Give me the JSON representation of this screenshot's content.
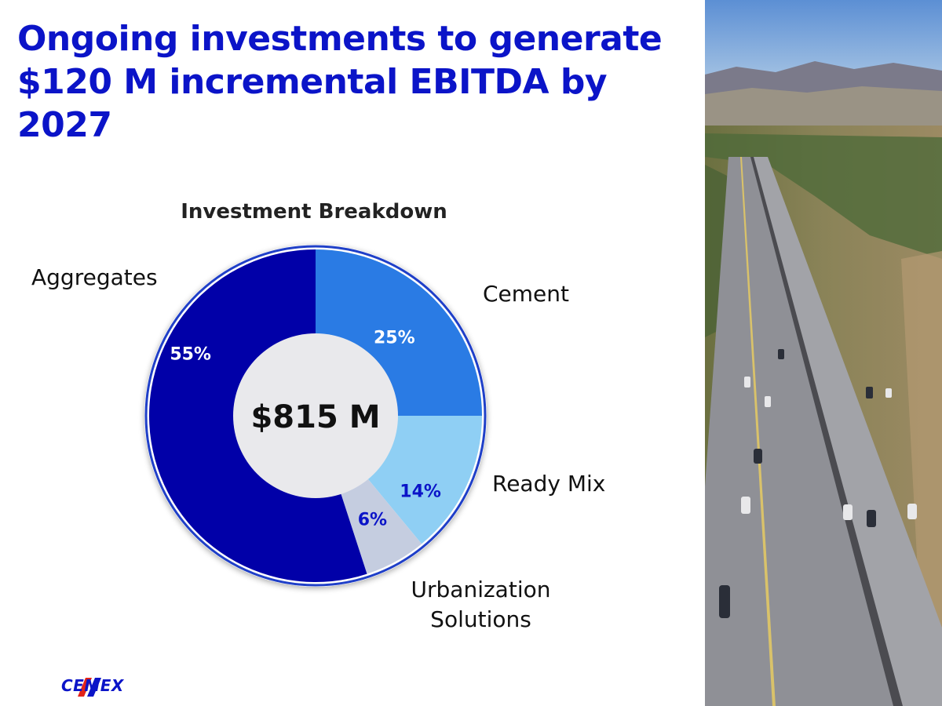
{
  "slide": {
    "title": "Ongoing investments to generate $120 M incremental EBITDA by 2027",
    "brand": "CEMEX"
  },
  "chart_data": {
    "type": "pie",
    "title": "Investment Breakdown",
    "center_label": "$815 M",
    "categories": [
      "Cement",
      "Ready Mix",
      "Urbanization Solutions",
      "Aggregates"
    ],
    "values": [
      25,
      14,
      6,
      55
    ],
    "value_labels": [
      "25%",
      "14%",
      "6%",
      "55%"
    ],
    "colors": [
      "#2a7be4",
      "#8fcff4",
      "#c5cde0",
      "#0100a8"
    ],
    "label_colors": [
      "#ffffff",
      "#0b14c8",
      "#0b14c8",
      "#ffffff"
    ],
    "legend": "labels-outside-slices"
  },
  "colors": {
    "title": "#0b14c8",
    "ring": "#1f3fc8"
  },
  "icons": {
    "photo": "highway-aerial-photo",
    "logo": "cemex-logo"
  }
}
